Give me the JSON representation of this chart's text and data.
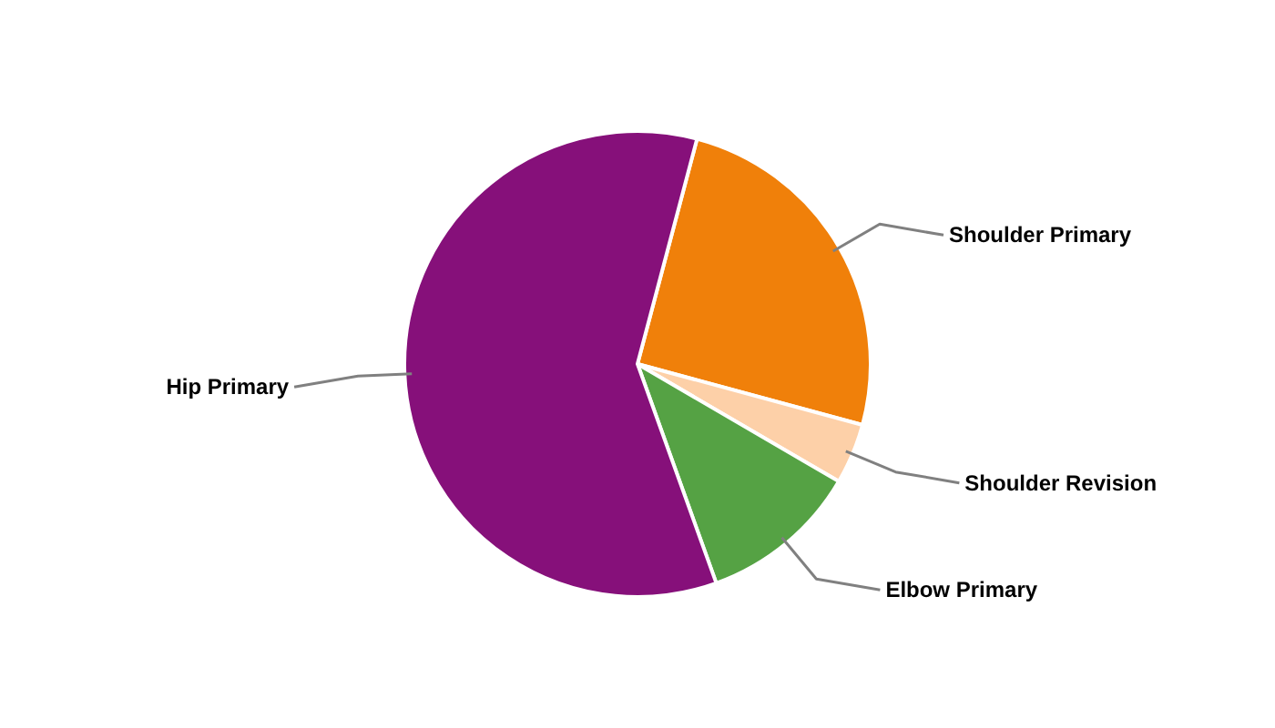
{
  "chart_data": {
    "type": "pie",
    "categories": [
      "Shoulder Primary",
      "Shoulder Revision",
      "Elbow Primary",
      "Hip Primary"
    ],
    "values": [
      25.1,
      4.2,
      11.1,
      59.6
    ],
    "colors": [
      "#f0800a",
      "#fdd0a8",
      "#55a244",
      "#86107a"
    ],
    "legend": false
  }
}
